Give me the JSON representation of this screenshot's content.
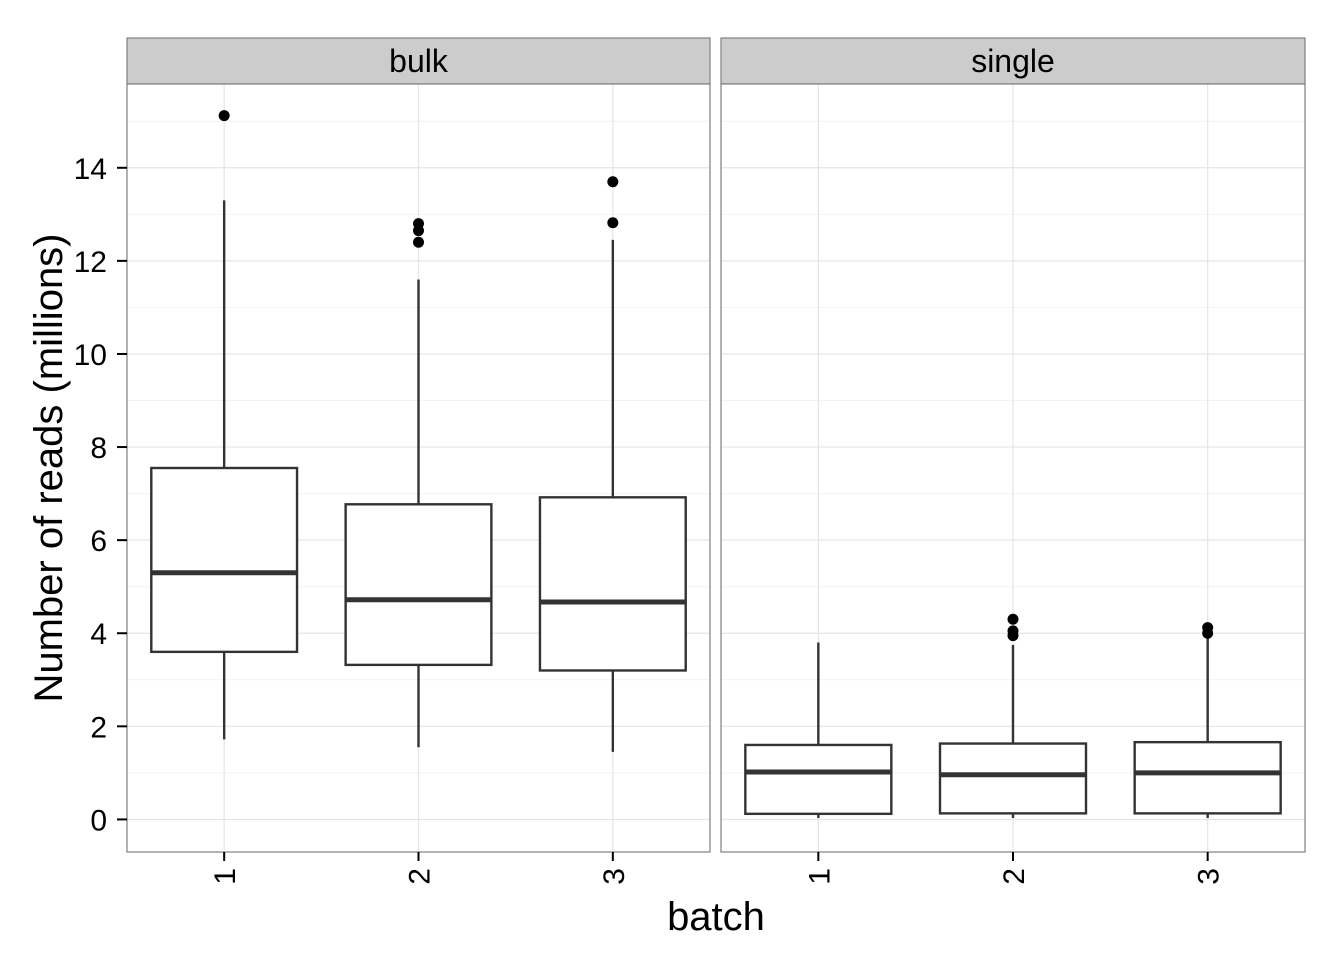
{
  "chart_data": {
    "type": "box",
    "xlabel": "batch",
    "ylabel": "Number of reads (millions)",
    "y_ticks": [
      0,
      2,
      4,
      6,
      8,
      10,
      12,
      14
    ],
    "ylim": [
      -0.7,
      15.8
    ],
    "x_categories": [
      "1",
      "2",
      "3"
    ],
    "grid": true,
    "facets": [
      {
        "label": "bulk",
        "boxes": [
          {
            "batch": "1",
            "q1": 3.6,
            "median": 5.3,
            "q3": 7.55,
            "whisker_low": 1.72,
            "whisker_high": 13.3,
            "outliers": [
              15.12
            ]
          },
          {
            "batch": "2",
            "q1": 3.32,
            "median": 4.72,
            "q3": 6.77,
            "whisker_low": 1.55,
            "whisker_high": 11.6,
            "outliers": [
              12.8,
              12.65,
              12.4
            ]
          },
          {
            "batch": "3",
            "q1": 3.2,
            "median": 4.67,
            "q3": 6.92,
            "whisker_low": 1.45,
            "whisker_high": 12.45,
            "outliers": [
              13.7,
              12.82
            ]
          }
        ]
      },
      {
        "label": "single",
        "boxes": [
          {
            "batch": "1",
            "q1": 0.12,
            "median": 1.02,
            "q3": 1.6,
            "whisker_low": 0.03,
            "whisker_high": 3.8,
            "outliers": []
          },
          {
            "batch": "2",
            "q1": 0.13,
            "median": 0.96,
            "q3": 1.63,
            "whisker_low": 0.03,
            "whisker_high": 3.75,
            "outliers": [
              4.3,
              4.05,
              3.95
            ]
          },
          {
            "batch": "3",
            "q1": 0.13,
            "median": 1.0,
            "q3": 1.66,
            "whisker_low": 0.03,
            "whisker_high": 3.95,
            "outliers": [
              4.12,
              4.0
            ]
          }
        ]
      }
    ]
  }
}
